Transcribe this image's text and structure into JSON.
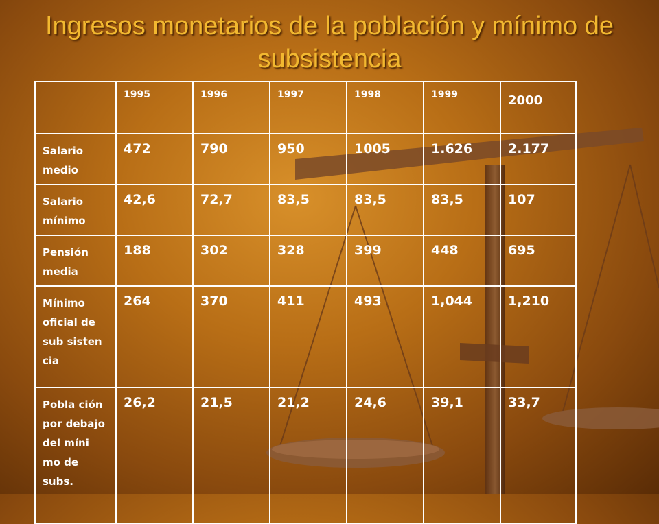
{
  "slide": {
    "title": "Ingresos monetarios de la población y mínimo de subsistencia"
  },
  "table": {
    "years": [
      "1995",
      "1996",
      "1997",
      "1998",
      "1999",
      "2000"
    ],
    "rows": [
      {
        "label": "Salario medio",
        "values": [
          "472",
          "790",
          "950",
          "1005",
          "1.626",
          "2.177"
        ]
      },
      {
        "label": "Salario mínimo",
        "values": [
          "42,6",
          "72,7",
          "83,5",
          "83,5",
          "83,5",
          "107"
        ]
      },
      {
        "label": "Pensión media",
        "values": [
          "188",
          "302",
          "328",
          "399",
          "448",
          "695"
        ]
      },
      {
        "label": "Mínimo oficial de sub sisten cia",
        "values": [
          "264",
          "370",
          "411",
          "493",
          "1,044",
          "1,210"
        ]
      },
      {
        "label": "Pobla ción por debajo del míni mo de subs.",
        "values": [
          "26,2",
          "21,5",
          "21,2",
          "24,6",
          "39,1",
          "33,7"
        ]
      }
    ]
  },
  "colors": {
    "title": "#f2b830",
    "text": "#ffffff"
  },
  "decor": {
    "image": "scales-of-justice-icon"
  }
}
